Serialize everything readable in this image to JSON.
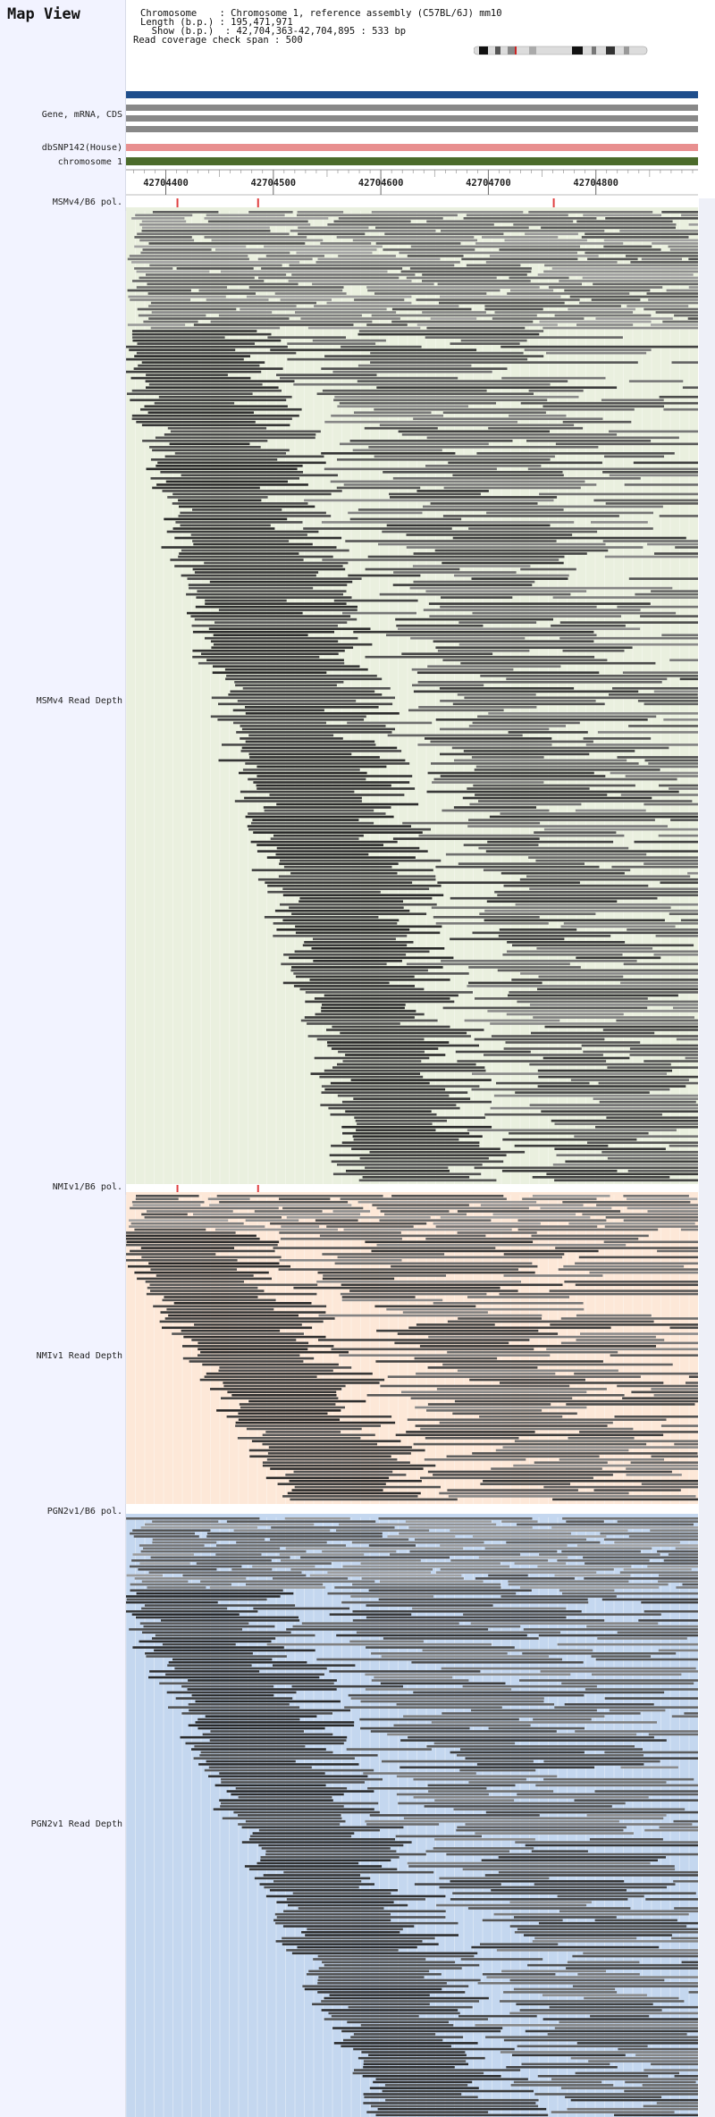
{
  "title": "Map View",
  "info": {
    "chromosome": "Chromosome    : Chromosome 1, reference assembly (C57BL/6J) mm10",
    "length": "Length (b.p.) : 195,471,971",
    "show": "  Show (b.p.)  : 42,704,363-42,704,895 : 533 bp",
    "coverage": "Read coverage check span : 500"
  },
  "tracks": {
    "gene": "Gene, mRNA, CDS",
    "dbsnp": "dbSNP142(House)",
    "chromosome": "chromosome 1",
    "msm_pol": "MSMv4/B6 pol.",
    "msm_depth": "MSMv4 Read Depth",
    "nmi_pol": "NMIv1/B6 pol.",
    "nmi_depth": "NMIv1 Read Depth",
    "pgn_pol": "PGN2v1/B6 pol.",
    "pgn_depth": "PGN2v1 Read Depth"
  },
  "ruler_ticks": [
    "42704400",
    "42704500",
    "42704600",
    "42704700",
    "42704800"
  ],
  "colors": {
    "gene_bar": "#1f4e8c",
    "mrna_bar": "#888888",
    "dbsnp_bar": "#e88f8f",
    "chromosome_bar": "#4b6b2a",
    "msm_bg": "#eaf0df",
    "nmi_bg": "#fde8d8",
    "pgn_bg": "#c4d7ef",
    "polymorphism": "#e04040"
  },
  "polymorphisms": {
    "msm": [
      42704410,
      42704485,
      42704760
    ],
    "nmi": [
      42704410,
      42704485
    ],
    "pgn": []
  }
}
